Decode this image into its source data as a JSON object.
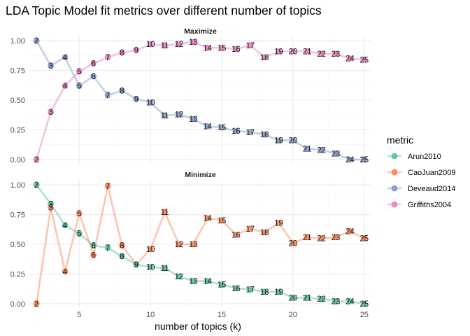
{
  "chart_data": {
    "type": "line",
    "title": "LDA Topic Model fit metrics over different number of topics",
    "xlabel": "number of topics (k)",
    "ylabel": "",
    "x": [
      2,
      3,
      4,
      5,
      6,
      7,
      8,
      9,
      10,
      11,
      12,
      13,
      14,
      15,
      16,
      17,
      18,
      19,
      20,
      21,
      22,
      23,
      24,
      25
    ],
    "xlim": [
      1.5,
      25.5
    ],
    "xticks": [
      5,
      10,
      15,
      20,
      25
    ],
    "ylim": [
      -0.03,
      1.03
    ],
    "yticks": [
      0.0,
      0.25,
      0.5,
      0.75,
      1.0
    ],
    "ytick_labels": [
      "0.00",
      "0.25",
      "0.50",
      "0.75",
      "1.00"
    ],
    "grid": true,
    "legend": {
      "title": "metric",
      "placement": "right",
      "entries": [
        "Arun2010",
        "CaoJuan2009",
        "Deveaud2014",
        "Griffiths2004"
      ]
    },
    "colors": {
      "Arun2010": "#66c2a5",
      "CaoJuan2009": "#fc8d62",
      "Deveaud2014": "#8da0cb",
      "Griffiths2004": "#e78ac3"
    },
    "panels": [
      {
        "title": "Maximize",
        "series": [
          {
            "name": "Deveaud2014",
            "values": [
              1.0,
              0.79,
              0.86,
              0.62,
              0.7,
              0.54,
              0.58,
              0.51,
              0.48,
              0.37,
              0.38,
              0.34,
              0.28,
              0.27,
              0.24,
              0.23,
              0.21,
              0.16,
              0.16,
              0.09,
              0.08,
              0.05,
              0.0,
              0.0
            ]
          },
          {
            "name": "Griffiths2004",
            "values": [
              0.0,
              0.4,
              0.62,
              0.74,
              0.81,
              0.86,
              0.9,
              0.92,
              0.97,
              0.96,
              0.97,
              0.99,
              0.94,
              0.94,
              0.93,
              0.96,
              0.86,
              0.91,
              0.91,
              0.91,
              0.89,
              0.89,
              0.85,
              0.84
            ]
          }
        ]
      },
      {
        "title": "Minimize",
        "series": [
          {
            "name": "CaoJuan2009",
            "values": [
              0.0,
              0.81,
              0.27,
              0.76,
              0.41,
              0.99,
              0.49,
              0.33,
              0.46,
              0.77,
              0.5,
              0.5,
              0.72,
              0.7,
              0.58,
              0.63,
              0.6,
              0.68,
              0.51,
              0.56,
              0.55,
              0.56,
              0.61,
              0.55
            ]
          },
          {
            "name": "Arun2010",
            "values": [
              1.0,
              0.84,
              0.66,
              0.59,
              0.49,
              0.47,
              0.4,
              0.33,
              0.31,
              0.3,
              0.23,
              0.19,
              0.19,
              0.16,
              0.13,
              0.12,
              0.1,
              0.1,
              0.05,
              0.05,
              0.04,
              0.02,
              0.02,
              0.0
            ]
          }
        ]
      }
    ]
  }
}
